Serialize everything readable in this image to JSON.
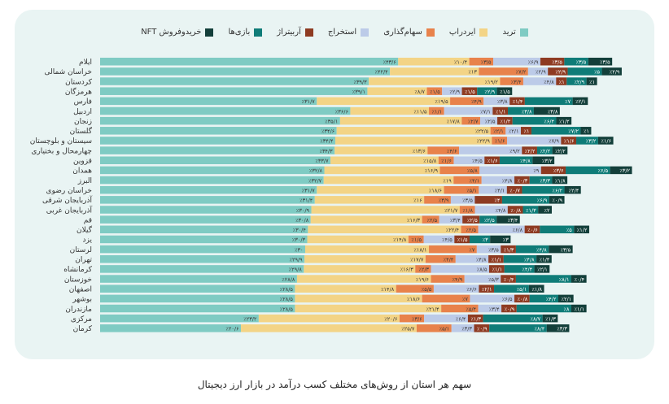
{
  "chart_data": {
    "type": "bar",
    "orientation": "horizontal",
    "stacked": true,
    "title": "سهم هر استان از روش‌های مختلف کسب درآمد در بازار ارز دیجیتال",
    "legend_position": "top",
    "series_names": [
      "ترید",
      "ایردراپ",
      "سهام‌گذاری",
      "استخراج",
      "آربیتراژ",
      "بازی‌ها",
      "خریدوفروش NFT"
    ],
    "colors": [
      "#7fcbc3",
      "#f3d486",
      "#e8824b",
      "#bccbe8",
      "#8e3b22",
      "#0f7c78",
      "#133f3a"
    ],
    "categories": [
      "ایلام",
      "خراسان شمالی",
      "کردستان",
      "هرمزگان",
      "فارس",
      "اردبیل",
      "زنجان",
      "گلستان",
      "سیستان و بلوچستان",
      "چهارمحال و بختیاری",
      "قزوین",
      "همدان",
      "البرز",
      "خراسان رضوی",
      "آذربایجان شرقی",
      "آذربایجان غربی",
      "قم",
      "گیلان",
      "یزد",
      "لرستان",
      "تهران",
      "کرمانشاه",
      "خوزستان",
      "اصفهان",
      "بوشهر",
      "مازندران",
      "مرکزی",
      "کرمان"
    ],
    "values": [
      [
        43.6,
        10.4,
        3.5,
        6.9,
        3.5,
        3.5,
        3.5
      ],
      [
        42.4,
        13,
        7.2,
        2.9,
        2.9,
        5,
        2.9
      ],
      [
        39.3,
        19.2,
        3.4,
        4.8,
        1,
        2.9,
        1
      ],
      [
        39.1,
        8.7,
        1.5,
        2.9,
        1.5,
        2.9,
        1.5
      ],
      [
        31.7,
        19.5,
        4.9,
        3.8,
        1.4,
        7,
        2.1
      ],
      [
        36.6,
        11.5,
        1.1,
        7.1,
        1.1,
        3.8,
        3.8
      ],
      [
        35.1,
        17.8,
        2.7,
        2.5,
        1.2,
        6.4,
        1.2
      ],
      [
        34.6,
        22.5,
        2.1,
        2.1,
        1,
        7.2,
        1
      ],
      [
        34.4,
        22.9,
        1.6,
        7.9,
        1.6,
        3.2,
        1.6
      ],
      [
        34.3,
        13.6,
        4.6,
        9.2,
        2.2,
        2.2,
        2.2
      ],
      [
        33.7,
        15.8,
        1.6,
        4.5,
        1.6,
        4.8,
        3.2
      ],
      [
        32.8,
        16.9,
        5.8,
        9,
        3.6,
        6.5,
        3.2
      ],
      [
        32.7,
        19,
        4.1,
        4.8,
        0.3,
        3.3,
        1.8
      ],
      [
        31.7,
        18.6,
        5.1,
        4.1,
        0.7,
        6.2,
        2.4
      ],
      [
        31.4,
        16,
        3.9,
        3.5,
        4,
        6.9,
        0.9
      ],
      [
        30.9,
        21.7,
        1.8,
        4.8,
        0.8,
        1.3,
        2
      ],
      [
        30.8,
        16.3,
        2.5,
        3.4,
        2.5,
        2.5,
        3.4
      ],
      [
        30.4,
        22.4,
        2.5,
        6.8,
        0.6,
        5,
        1.2
      ],
      [
        30.3,
        14.8,
        1.5,
        4.5,
        1.5,
        3,
        3
      ],
      [
        30,
        18.1,
        7,
        3.5,
        1.3,
        4.8,
        3.5
      ],
      [
        29.9,
        17.7,
        4.4,
        4.8,
        1.1,
        4.8,
        1.4
      ],
      [
        29.8,
        16.3,
        2.3,
        8.5,
        1.1,
        4.4,
        2.1
      ],
      [
        28.8,
        19.6,
        4.9,
        5.3,
        0.4,
        8.1,
        0.4
      ],
      [
        28.5,
        14.8,
        5.5,
        6.6,
        2.1,
        5.1,
        1.8
      ],
      [
        28.5,
        18.6,
        7,
        6.5,
        0.8,
        4.2,
        2.1
      ],
      [
        28.5,
        21.4,
        5.4,
        3.4,
        0.9,
        8,
        1.1
      ],
      [
        23.2,
        20.6,
        3.6,
        6.4,
        1.3,
        8.7,
        1.3
      ],
      [
        20.6,
        25.7,
        5.1,
        3.3,
        0.9,
        8.4,
        3.3
      ]
    ],
    "unit": "٪"
  }
}
